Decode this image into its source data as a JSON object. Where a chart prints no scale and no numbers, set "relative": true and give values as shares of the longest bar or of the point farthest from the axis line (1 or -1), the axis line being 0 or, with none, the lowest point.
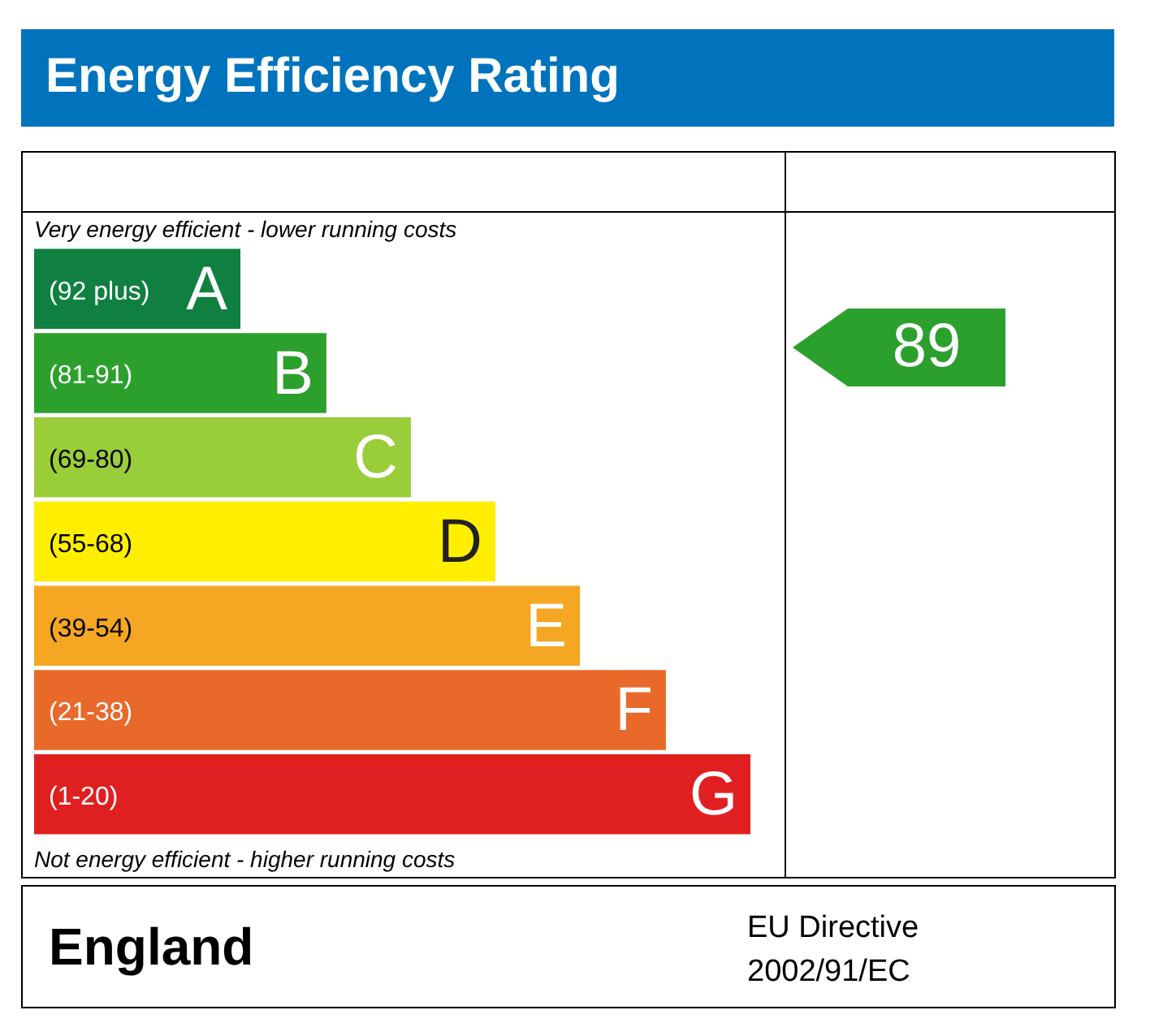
{
  "chart_data": {
    "type": "bar",
    "orientation": "horizontal",
    "relative": true,
    "title": "Energy Efficiency Rating",
    "categories": [
      "(92 plus)",
      "(81-91)",
      "(69-80)",
      "(55-68)",
      "(39-54)",
      "(21-38)",
      "(1-20)"
    ],
    "values": [
      0.288,
      0.408,
      0.526,
      0.644,
      0.762,
      0.882,
      1
    ],
    "colors": [
      "#0f8040",
      "#2ca02c",
      "#9acd3a",
      "#ffee00",
      "#f5a623",
      "#e8692a",
      "#e02020"
    ],
    "legend": false,
    "annotations": [
      "Very energy efficient - lower running costs",
      "Not energy efficient - higher running costs",
      "England",
      "EU Directive",
      "2002/91/EC",
      "89",
      {
        "text": "A",
        "x": 0.288,
        "y": "(92 plus)"
      },
      {
        "text": "B",
        "x": 0.408,
        "y": "(81-91)"
      },
      {
        "text": "C",
        "x": 0.526,
        "y": "(69-80)"
      },
      {
        "text": "D",
        "x": 0.644,
        "y": "(55-68)"
      },
      {
        "text": "E",
        "x": 0.762,
        "y": "(39-54)"
      },
      {
        "text": "F",
        "x": 0.882,
        "y": "(21-38)"
      },
      {
        "text": "G",
        "x": 1,
        "y": "(1-20)"
      }
    ]
  }
}
